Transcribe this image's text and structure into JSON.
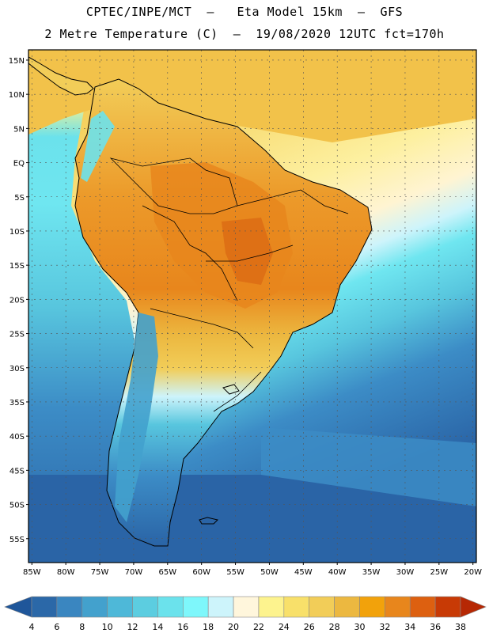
{
  "header": {
    "title_line1": "CPTEC/INPE/MCT  –   Eta Model 15km  –  GFS",
    "title_line2": "2 Metre Temperature (C)  –  19/08/2020 12UTC fct=170h"
  },
  "map": {
    "lat_labels": [
      "15N",
      "10N",
      "5N",
      "EQ",
      "5S",
      "10S",
      "15S",
      "20S",
      "25S",
      "30S",
      "35S",
      "40S",
      "45S",
      "50S",
      "55S"
    ],
    "lat_values": [
      15,
      10,
      5,
      0,
      -5,
      -10,
      -15,
      -20,
      -25,
      -30,
      -35,
      -40,
      -45,
      -50,
      -55
    ],
    "lon_labels": [
      "85W",
      "80W",
      "75W",
      "70W",
      "65W",
      "60W",
      "55W",
      "50W",
      "45W",
      "40W",
      "35W",
      "30W",
      "25W",
      "20W"
    ],
    "lon_values": [
      -85,
      -80,
      -75,
      -70,
      -65,
      -60,
      -55,
      -50,
      -45,
      -40,
      -35,
      -30,
      -25,
      -20
    ],
    "extent": {
      "lon_min": -85.5,
      "lon_max": -19.5,
      "lat_min": -58.5,
      "lat_max": 16.5
    }
  },
  "colorbar": {
    "labels": [
      "4",
      "6",
      "8",
      "10",
      "12",
      "14",
      "16",
      "18",
      "20",
      "22",
      "24",
      "26",
      "28",
      "30",
      "32",
      "34",
      "36",
      "38"
    ],
    "colors": [
      "#2b68a8",
      "#3a86c0",
      "#43a1cd",
      "#4eb8d8",
      "#5ccde0",
      "#6be2ec",
      "#7ef7fb",
      "#cdf4fb",
      "#fff6dc",
      "#fdf38e",
      "#f8e06a",
      "#f2cd58",
      "#ecb840",
      "#f2a20b",
      "#e8861c",
      "#dd6010",
      "#c83a05"
    ],
    "low_arrow_color": "#1f569a",
    "high_arrow_color": "#b62804"
  },
  "legend_colors": {
    "ocean_south_deep": "#2a64a6",
    "ocean_south_mid": "#3c8cc6",
    "ocean_band": "#58c6de",
    "ocean_cyan": "#6fe6f0",
    "ocean_light": "#cdf4fb",
    "ocean_cream": "#fff4d2",
    "ocean_yellow": "#fdf0a0",
    "ocean_gold": "#f6d666",
    "land_hot": "#ec9a2a",
    "land_very_hot": "#db6a14",
    "andes_cold": "#3a86c0"
  }
}
